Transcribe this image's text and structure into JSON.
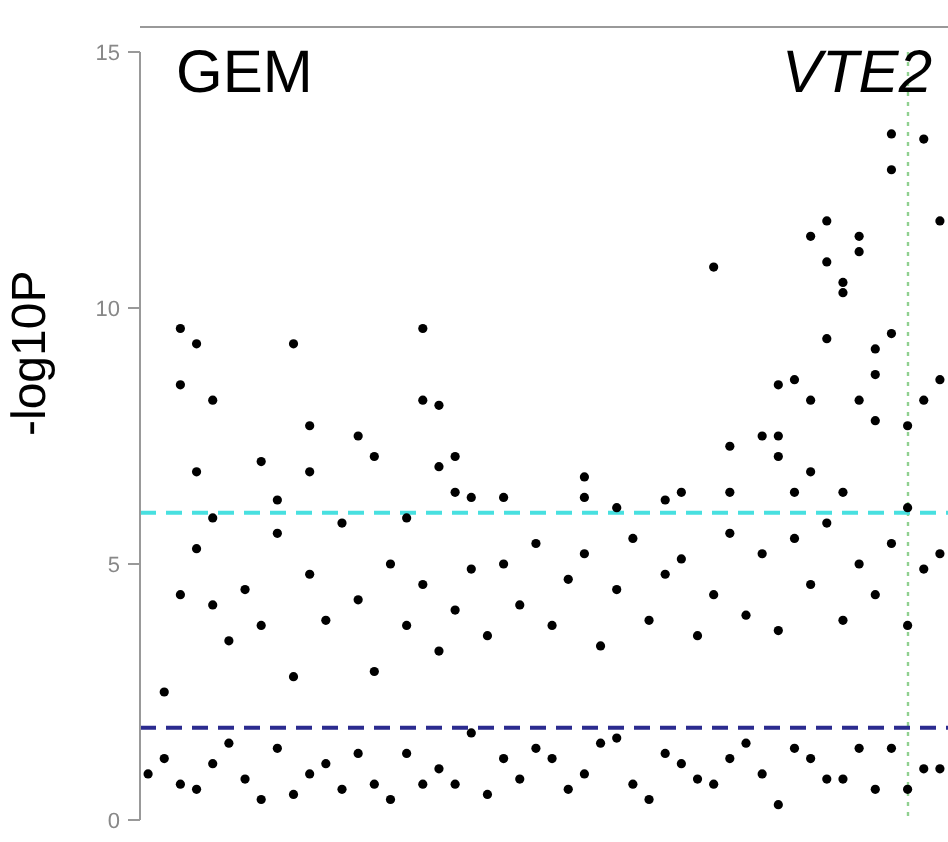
{
  "chart_data": {
    "type": "scatter",
    "ylabel": "-log10P",
    "annotations": [
      "GEM",
      "VTE2"
    ],
    "categories": [
      null,
      null,
      null,
      null,
      null,
      null,
      null,
      null,
      null,
      null,
      null,
      null,
      null,
      null,
      null,
      null,
      null,
      null,
      null,
      null,
      null,
      null,
      null,
      null,
      null,
      null,
      null,
      null,
      null,
      null,
      null,
      null,
      null,
      null,
      null,
      null,
      null,
      null,
      null,
      null,
      null,
      null,
      null,
      null,
      null,
      null,
      null,
      null,
      null,
      null
    ],
    "ylim": [
      0,
      15
    ],
    "yticks": [
      0,
      5,
      10,
      15
    ],
    "tick_labels": "y",
    "marker": "circle",
    "ref_lines": [
      {
        "axis": "y",
        "value": 6,
        "color": "#48e0e0",
        "line_style": "dashed"
      },
      {
        "axis": "y",
        "value": 1.8,
        "color": "#2b2b8f",
        "line_style": "dashed"
      }
    ],
    "series": [
      {
        "color": "#000000",
        "values": [
          null,
          null,
          9.6,
          9.3,
          8.2,
          null,
          null,
          7.0,
          6.25,
          9.3,
          7.7,
          null,
          null,
          7.5,
          7.1,
          null,
          5.9,
          9.6,
          8.1,
          7.1,
          6.3,
          null,
          6.3,
          null,
          null,
          null,
          null,
          6.7,
          null,
          6.1,
          null,
          null,
          6.25,
          6.4,
          null,
          10.8,
          7.3,
          null,
          7.5,
          8.5,
          8.6,
          11.4,
          11.7,
          10.5,
          11.4,
          9.2,
          13.4,
          7.7,
          13.3,
          11.7
        ]
      },
      {
        "color": "#000000",
        "values": [
          null,
          null,
          8.5,
          6.8,
          5.9,
          null,
          null,
          null,
          null,
          null,
          6.8,
          null,
          null,
          null,
          null,
          null,
          null,
          8.2,
          6.9,
          6.4,
          null,
          null,
          null,
          null,
          null,
          null,
          null,
          6.3,
          null,
          null,
          null,
          null,
          null,
          null,
          null,
          null,
          6.4,
          null,
          null,
          7.5,
          6.4,
          8.2,
          10.9,
          10.3,
          11.1,
          7.8,
          12.7,
          6.1,
          8.2,
          8.6
        ]
      },
      {
        "color": "#000000",
        "values": [
          null,
          2.5,
          4.4,
          5.3,
          4.2,
          3.5,
          4.5,
          3.8,
          5.6,
          2.8,
          4.8,
          3.9,
          5.8,
          4.3,
          2.9,
          5.0,
          3.8,
          4.6,
          3.3,
          4.1,
          4.9,
          3.6,
          5.0,
          4.2,
          5.4,
          3.8,
          4.7,
          5.2,
          3.4,
          4.5,
          5.5,
          3.9,
          4.8,
          5.1,
          3.6,
          4.4,
          5.6,
          4.0,
          5.2,
          3.7,
          5.5,
          4.6,
          5.8,
          3.9,
          5.0,
          4.4,
          5.4,
          3.8,
          4.9,
          5.2
        ]
      },
      {
        "color": "#000000",
        "values": [
          0.9,
          1.2,
          0.7,
          0.6,
          1.1,
          1.5,
          0.8,
          0.4,
          1.4,
          0.5,
          0.9,
          1.1,
          0.6,
          1.3,
          0.7,
          0.4,
          1.3,
          0.7,
          1.0,
          0.7,
          1.7,
          0.5,
          1.2,
          0.8,
          1.4,
          1.2,
          0.6,
          0.9,
          1.5,
          1.6,
          0.7,
          0.4,
          1.3,
          1.1,
          0.8,
          0.7,
          1.2,
          1.5,
          0.9,
          0.3,
          1.4,
          1.2,
          0.8,
          0.8,
          1.4,
          0.6,
          1.4,
          0.6,
          1.0,
          1.0
        ]
      },
      {
        "color": "#000000",
        "values": [
          null,
          null,
          null,
          null,
          null,
          null,
          null,
          null,
          null,
          null,
          null,
          null,
          null,
          null,
          null,
          null,
          null,
          null,
          null,
          null,
          null,
          null,
          null,
          null,
          null,
          null,
          null,
          null,
          null,
          null,
          null,
          null,
          null,
          null,
          null,
          null,
          null,
          null,
          null,
          7.1,
          null,
          6.8,
          9.4,
          6.4,
          8.2,
          8.7,
          9.5,
          null,
          null,
          null
        ]
      }
    ]
  }
}
